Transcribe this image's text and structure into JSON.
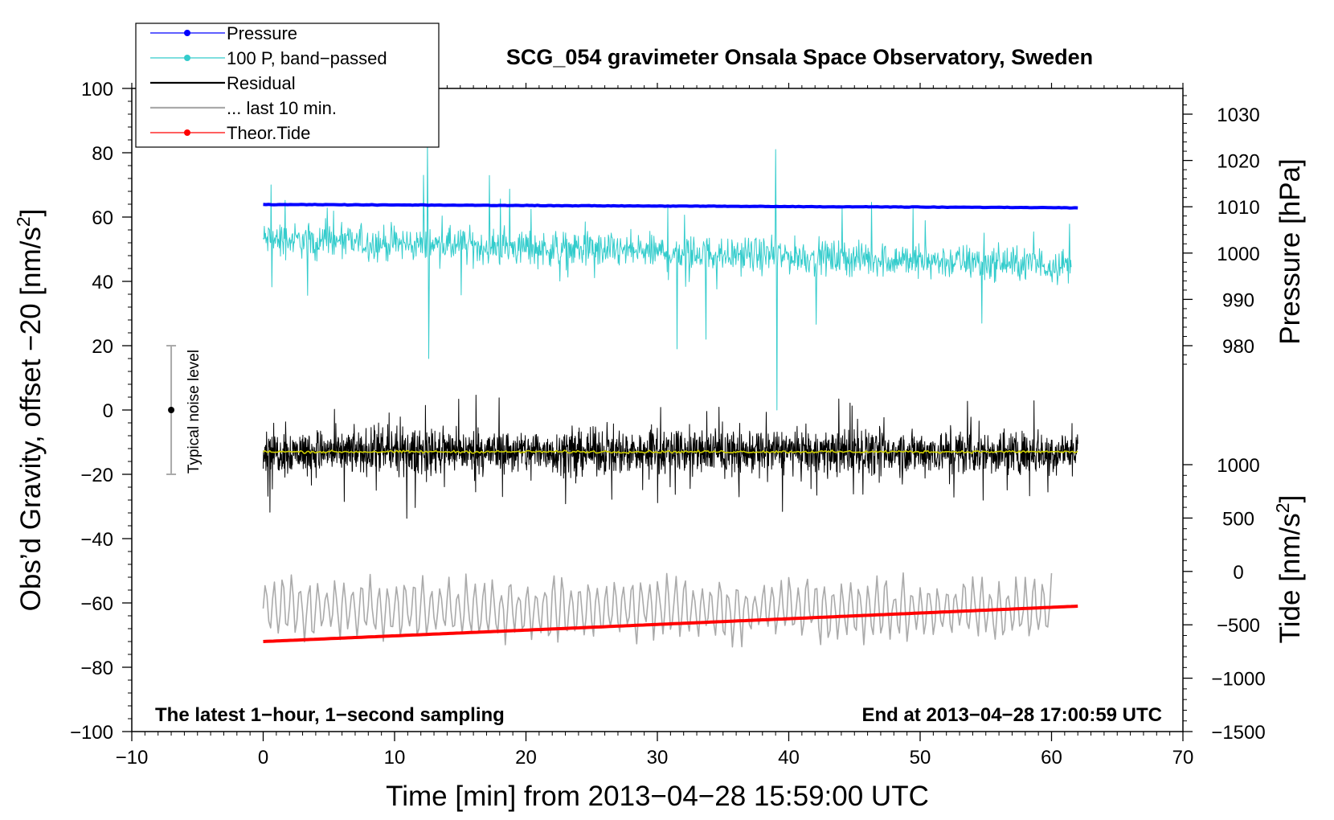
{
  "chart_data": {
    "type": "line",
    "title": "SCG_054 gravimeter Onsala Space Observatory, Sweden",
    "xlabel": "Time [min] from 2013−04−28 15:59:00 UTC",
    "ylabel_left_main": "Obs’d Gravity, offset −20 [nm/s",
    "ylabel_left_sup": "2",
    "ylabel_left_end": "]",
    "ylabel_pressure": "Pressure [hPa]",
    "ylabel_tide_main": "Tide [nm/s",
    "ylabel_tide_sup": "2",
    "ylabel_tide_end": "]",
    "footer_left": "The latest 1−hour, 1−second sampling",
    "footer_right": "End at 2013−04−28 17:00:59 UTC",
    "noise_label": "Typical noise level",
    "xlim": [
      -10,
      70
    ],
    "ylim": [
      -100,
      100
    ],
    "x_ticks": [
      -10,
      0,
      10,
      20,
      30,
      40,
      50,
      60,
      70
    ],
    "x_tick_labels": [
      "−10",
      "0",
      "10",
      "20",
      "30",
      "40",
      "50",
      "60",
      "70"
    ],
    "y_ticks": [
      100,
      80,
      60,
      40,
      20,
      0,
      -20,
      -40,
      -60,
      -80,
      -100
    ],
    "y_tick_labels": [
      "100",
      "80",
      "60",
      "40",
      "20",
      "0",
      "−20",
      "−40",
      "−60",
      "−80",
      "−100"
    ],
    "pressure_ticks": [
      1030,
      1020,
      1010,
      1000,
      990,
      980
    ],
    "pressure_ref": {
      "hpa": [
        1030,
        980
      ],
      "gravity_units": [
        92,
        20
      ]
    },
    "tide_ticks": [
      1000,
      500,
      0,
      -500,
      -1000,
      -1500
    ],
    "tide_tick_labels": [
      "1000",
      "500",
      "0",
      "−500",
      "−1000",
      "−1500"
    ],
    "tide_ref": {
      "nms2": [
        1000,
        -1500
      ],
      "gravity_units": [
        -17,
        -100
      ]
    },
    "noise_bar": {
      "x": -7,
      "center": 0,
      "low": -20,
      "high": 20
    },
    "legend": [
      {
        "label": "Pressure",
        "color": "#0000ff",
        "marker": true
      },
      {
        "label": "100 P, band−passed",
        "color": "#33cccc",
        "marker": true
      },
      {
        "label": "Residual",
        "color": "#000000",
        "marker": false
      },
      {
        "label": "... last 10 min.",
        "color": "#aaaaaa",
        "marker": false
      },
      {
        "label": "Theor.Tide",
        "color": "#ff0000",
        "marker": true
      }
    ],
    "series": [
      {
        "name": "Pressure",
        "unit": "hPa",
        "color": "#0000ff",
        "x_range": [
          0,
          62
        ],
        "start": 1010.5,
        "end": 1009.8
      },
      {
        "name": "100 P, band−passed",
        "unit": "nm/s2",
        "color": "#33cccc",
        "x_range": [
          0,
          61.5
        ],
        "baseline_start": 53,
        "baseline_end": 45,
        "spread": 8,
        "spikes": [
          {
            "x": 0.6,
            "y": 70
          },
          {
            "x": 12.2,
            "y": 73
          },
          {
            "x": 12.5,
            "y": 83
          },
          {
            "x": 12.6,
            "y": 16
          },
          {
            "x": 31.5,
            "y": 19
          },
          {
            "x": 39.0,
            "y": 81
          },
          {
            "x": 39.1,
            "y": 0
          },
          {
            "x": 33.7,
            "y": 22
          },
          {
            "x": 54.7,
            "y": 27
          }
        ]
      },
      {
        "name": "Residual",
        "unit": "nm/s2",
        "color": "#000000",
        "x_range": [
          0,
          62
        ],
        "mean": -13,
        "spread": 11
      },
      {
        "name": "Residual (smoothed)",
        "unit": "nm/s2",
        "color": "#cccc00",
        "x_range": [
          0,
          62
        ],
        "mean": -13
      },
      {
        "name": "... last 10 min.",
        "unit": "nm/s2",
        "color": "#aaaaaa",
        "x_range": [
          0,
          60
        ],
        "mean": -62,
        "spread": 8
      },
      {
        "name": "Theor.Tide",
        "unit": "nm/s2",
        "color": "#ff0000",
        "x_range": [
          0,
          62
        ],
        "start": -72,
        "end": -61
      }
    ]
  }
}
